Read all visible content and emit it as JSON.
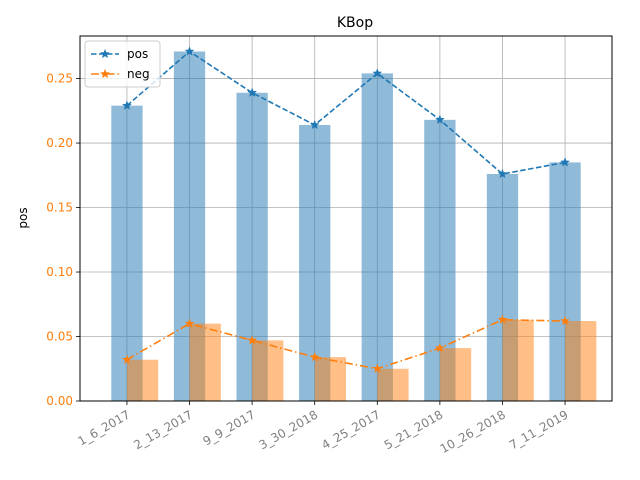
{
  "chart_data": {
    "type": "bar",
    "title": "KBop",
    "xlabel": "",
    "ylabel": "pos",
    "ylim": [
      0,
      0.283
    ],
    "yticks": [
      0.0,
      0.05,
      0.1,
      0.15,
      0.2,
      0.25
    ],
    "grid": true,
    "legend_position": "upper-left",
    "categories": [
      "1_6_2017",
      "2_13_2017",
      "9_9_2017",
      "3_30_2018",
      "4_25_2017",
      "5_21_2018",
      "10_26_2018",
      "7_11_2019"
    ],
    "series": [
      {
        "name": "pos",
        "values": [
          0.229,
          0.271,
          0.239,
          0.214,
          0.254,
          0.218,
          0.176,
          0.185
        ],
        "bar_color": "#1f77b4",
        "bar_alpha": 0.5,
        "line_color": "#1f77b4",
        "line_style": "dashed",
        "marker": "star"
      },
      {
        "name": "neg",
        "values": [
          0.032,
          0.06,
          0.047,
          0.034,
          0.025,
          0.041,
          0.063,
          0.062
        ],
        "bar_color": "#ff7f0e",
        "bar_alpha": 0.5,
        "line_color": "#ff7f0e",
        "line_style": "dashdot",
        "marker": "star"
      }
    ],
    "tick_label_color_x": "#808080",
    "tick_label_color_y": "#ff7f0e"
  }
}
